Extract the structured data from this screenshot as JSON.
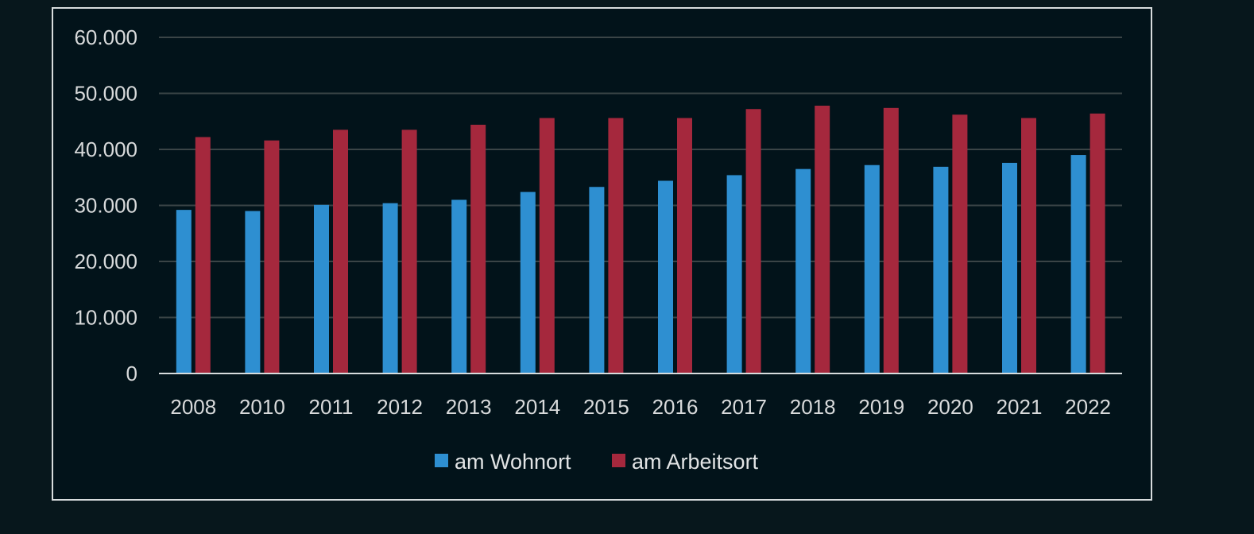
{
  "chart_data": {
    "type": "bar",
    "title": "",
    "xlabel": "",
    "ylabel": "",
    "categories": [
      "2008",
      "2010",
      "2011",
      "2012",
      "2013",
      "2014",
      "2015",
      "2016",
      "2017",
      "2018",
      "2019",
      "2020",
      "2021",
      "2022"
    ],
    "series": [
      {
        "name": "am Wohnort",
        "color": "#2e8fd1",
        "values": [
          29200,
          29000,
          30100,
          30400,
          31000,
          32400,
          33300,
          34400,
          35400,
          36500,
          37200,
          36900,
          37600,
          39000
        ]
      },
      {
        "name": "am Arbeitsort",
        "color": "#a5283d",
        "values": [
          42200,
          41600,
          43500,
          43500,
          44400,
          45600,
          45600,
          45600,
          47200,
          47800,
          47400,
          46200,
          45600,
          46400
        ]
      }
    ],
    "ylim": [
      0,
      60000
    ],
    "yticks": [
      "0",
      "10.000",
      "20.000",
      "30.000",
      "40.000",
      "50.000",
      "60.000"
    ],
    "ytick_values": [
      0,
      10000,
      20000,
      30000,
      40000,
      50000,
      60000
    ],
    "grid": true,
    "legend_position": "bottom-center"
  },
  "colors": {
    "background": "#07171c",
    "plot_background": "#02131a",
    "gridline": "#3a4446",
    "axis": "#d7dcdd",
    "text": "#d8dadb"
  }
}
